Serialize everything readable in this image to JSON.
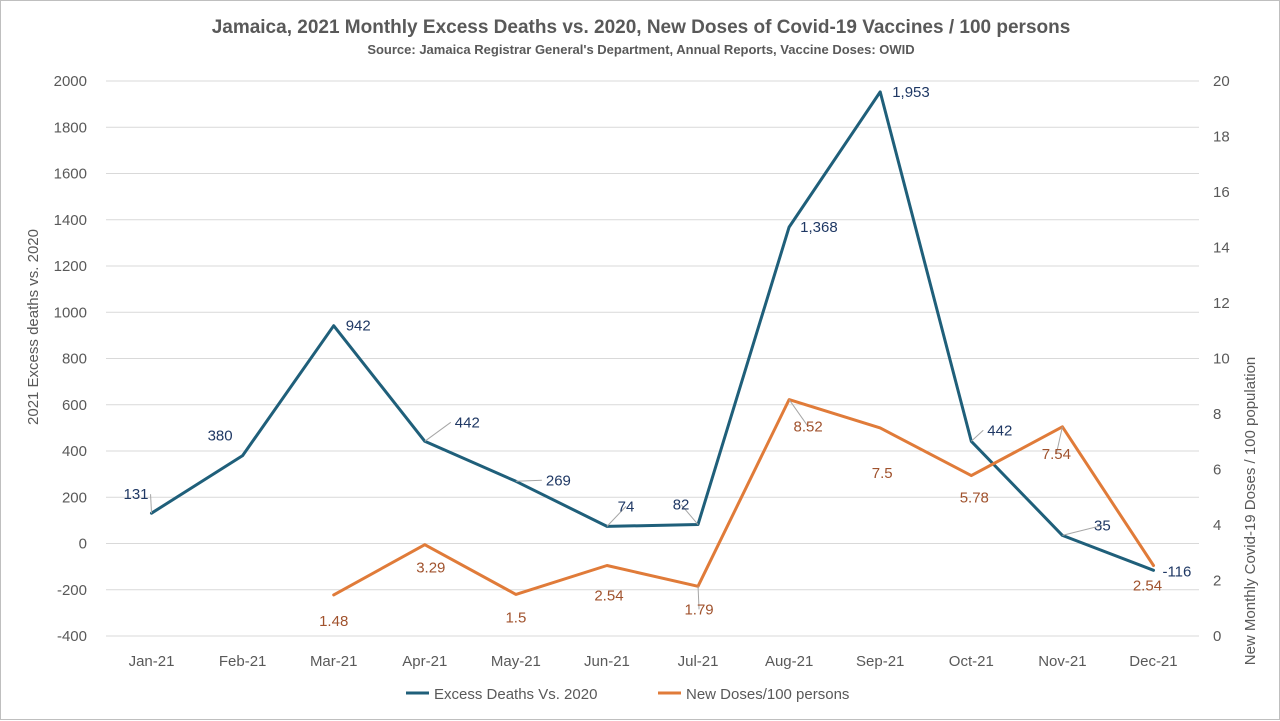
{
  "chart_data": {
    "type": "line",
    "title": "Jamaica, 2021 Monthly Excess Deaths vs. 2020, New Doses of Covid-19 Vaccines / 100 persons",
    "subtitle": "Source: Jamaica Registrar General's Department, Annual Reports, Vaccine Doses: OWID",
    "categories": [
      "Jan-21",
      "Feb-21",
      "Mar-21",
      "Apr-21",
      "May-21",
      "Jun-21",
      "Jul-21",
      "Aug-21",
      "Sep-21",
      "Oct-21",
      "Nov-21",
      "Dec-21"
    ],
    "y_left": {
      "label": "2021 Excess deaths vs. 2020",
      "range": [
        -400,
        2000
      ],
      "ticks": [
        "2000",
        "1800",
        "1600",
        "1400",
        "1200",
        "1000",
        "800",
        "600",
        "400",
        "200",
        "0",
        "-200",
        "-400"
      ],
      "tick_values": [
        2000,
        1800,
        1600,
        1400,
        1200,
        1000,
        800,
        600,
        400,
        200,
        0,
        -200,
        -400
      ]
    },
    "y_right": {
      "label": "New Monthly Covid-19 Doses / 100 population",
      "range": [
        0,
        20
      ],
      "ticks": [
        "20",
        "18",
        "16",
        "14",
        "12",
        "10",
        "8",
        "6",
        "4",
        "2",
        "0"
      ],
      "tick_values": [
        20,
        18,
        16,
        14,
        12,
        10,
        8,
        6,
        4,
        2,
        0
      ]
    },
    "grid": true,
    "legend_position": "bottom",
    "series": [
      {
        "name": "Excess Deaths Vs. 2020",
        "axis": "left",
        "color": "#1f5f7a",
        "values": [
          131,
          380,
          942,
          442,
          269,
          74,
          82,
          1368,
          1953,
          442,
          35,
          -116
        ],
        "labels": [
          "131",
          "380",
          "942",
          "442",
          "269",
          "74",
          "82",
          "1,368",
          "1,953",
          "442",
          "35",
          "-116"
        ]
      },
      {
        "name": "New Doses/100 persons",
        "axis": "right",
        "color": "#e07b39",
        "values": [
          null,
          null,
          1.48,
          3.29,
          1.5,
          2.54,
          1.79,
          8.52,
          7.5,
          5.78,
          7.54,
          2.54
        ],
        "labels": [
          "",
          "",
          "1.48",
          "3.29",
          "1.5",
          "2.54",
          "1.79",
          "8.52",
          "7.5",
          "5.78",
          "7.54",
          "2.54"
        ]
      }
    ]
  },
  "colors": {
    "excess_label": "#1f3864",
    "doses_label": "#a0522d",
    "leader": "#a6a6a6"
  }
}
